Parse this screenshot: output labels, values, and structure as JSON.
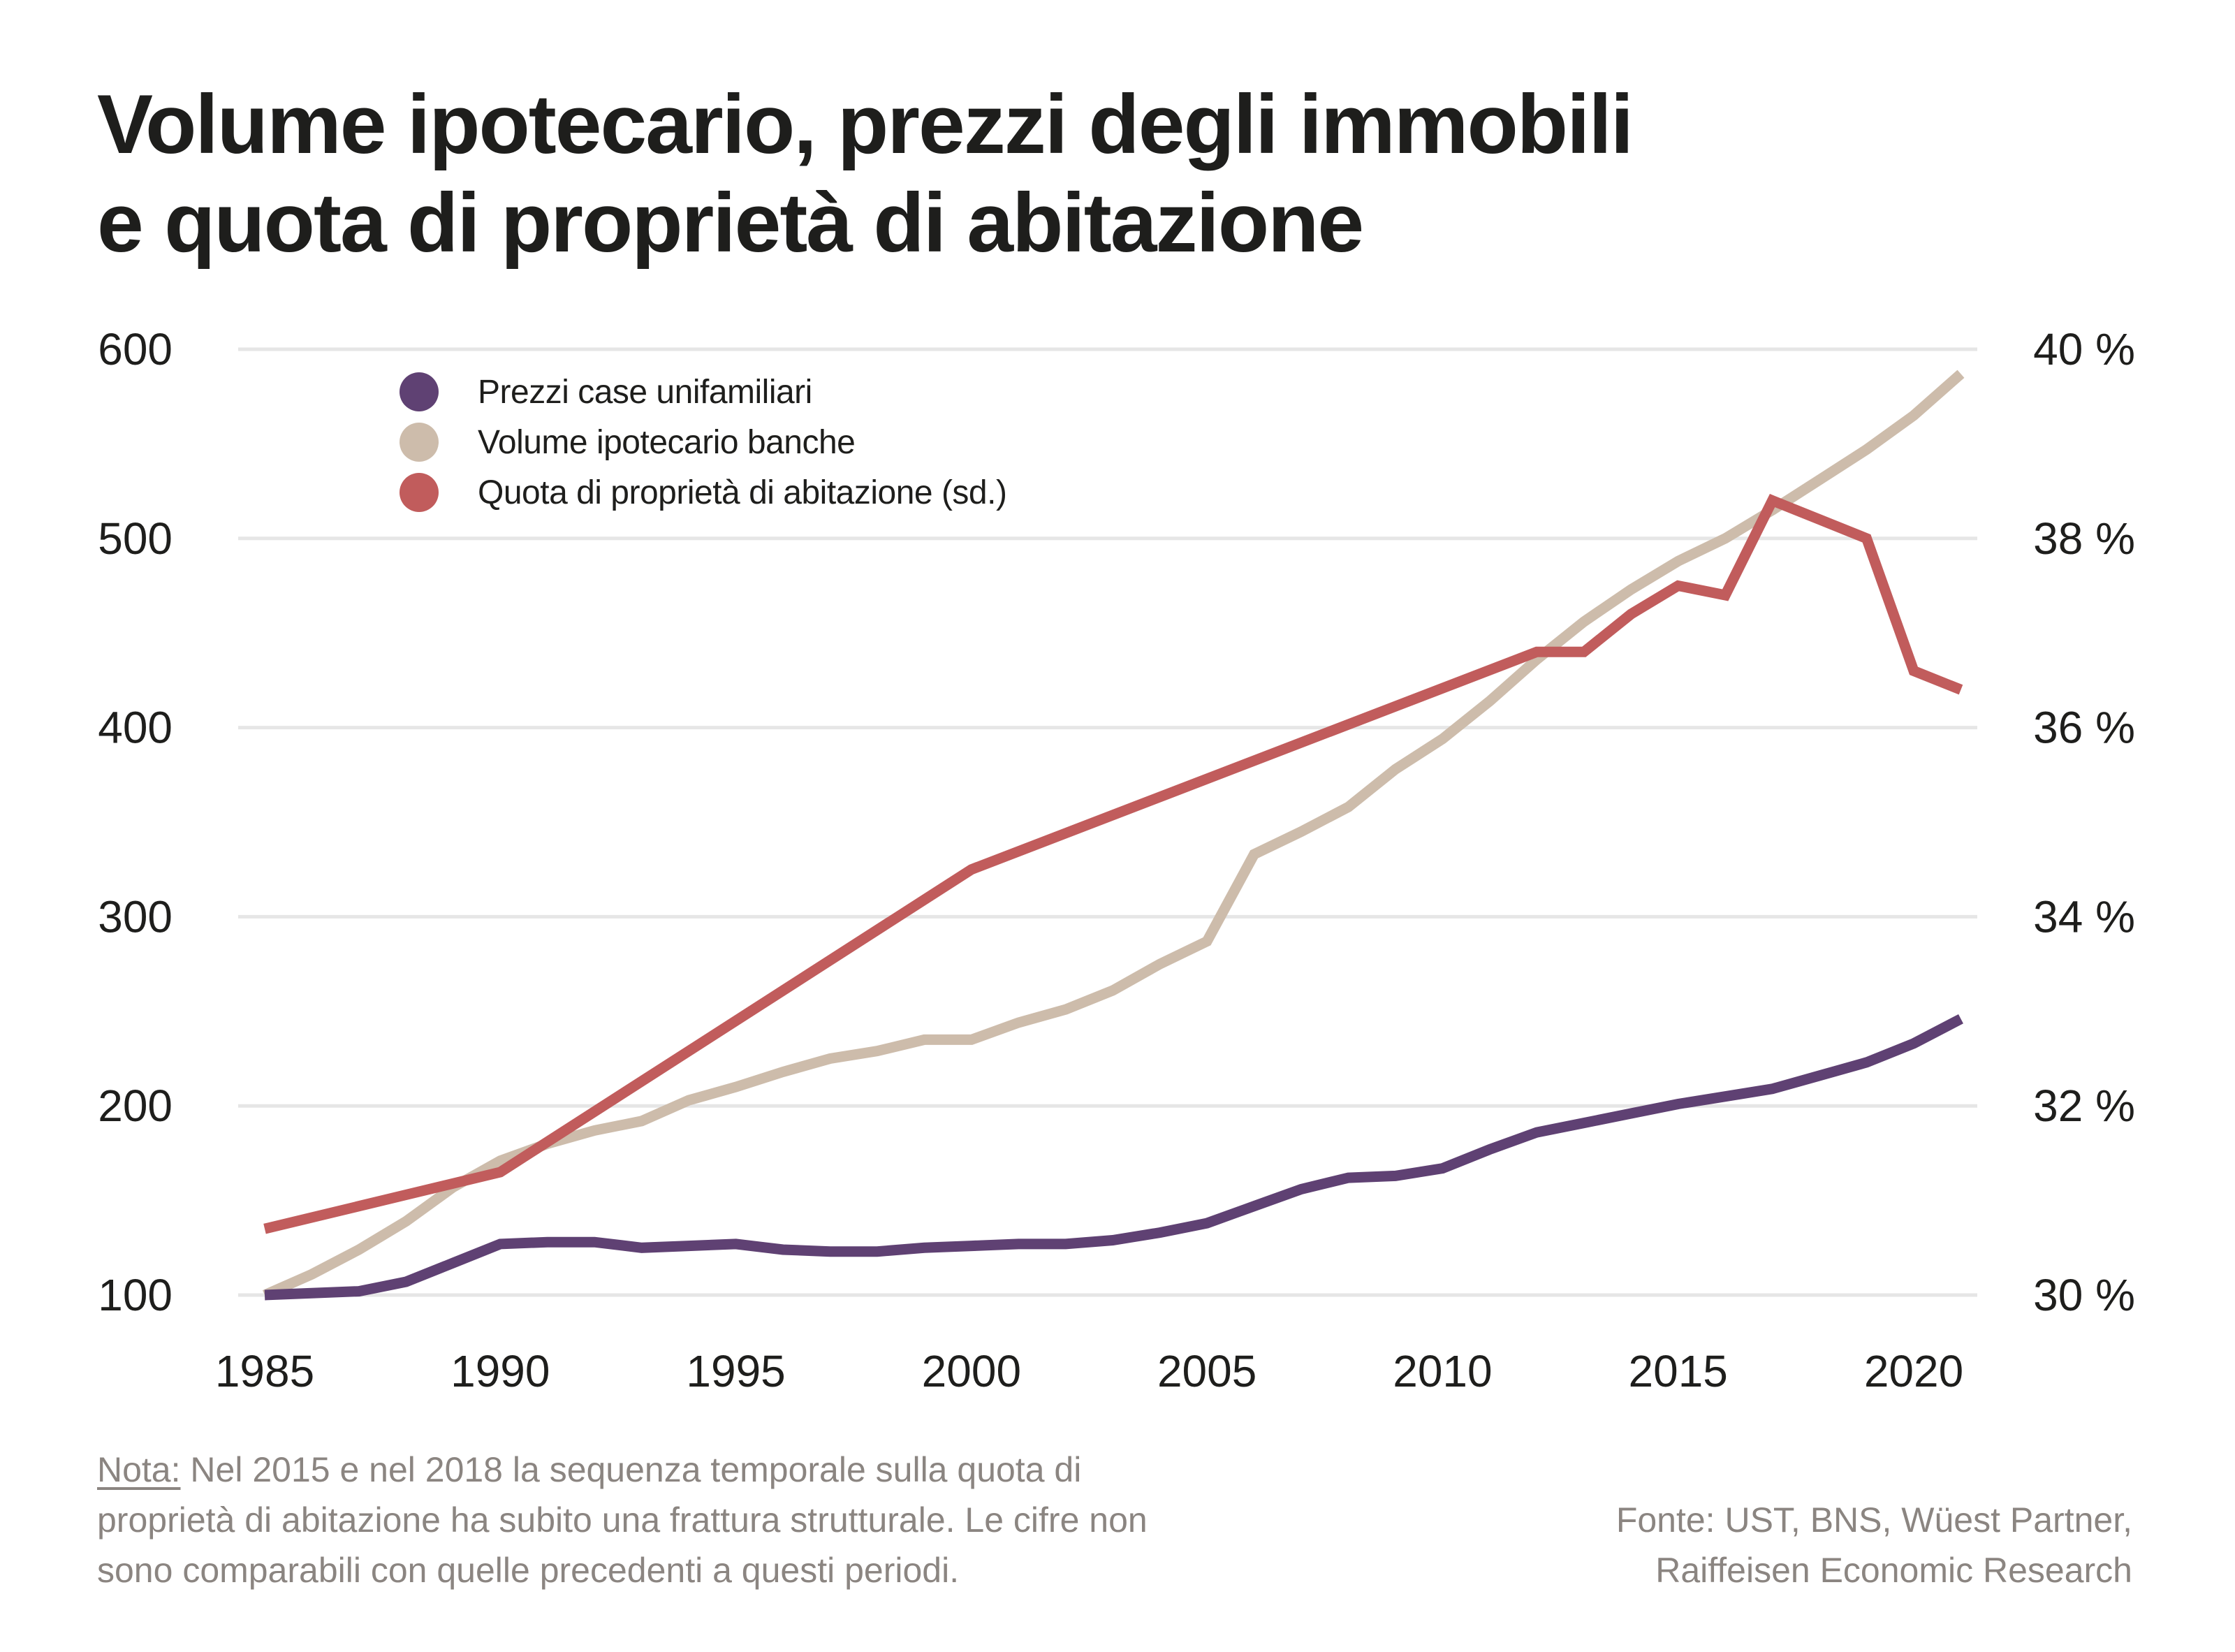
{
  "title": {
    "line1": "Volume ipotecario, prezzi degli immobili",
    "line2": "e quota di proprietà di abitazione"
  },
  "colors": {
    "prezzi": "#5f4173",
    "volume": "#cdbcab",
    "quota": "#c15c5c",
    "grid": "#e6e6e6",
    "text": "#1e1e1c",
    "note_text": "#8b8581"
  },
  "legend": [
    {
      "label": "Prezzi case unifamiliari",
      "color": "#5f4173"
    },
    {
      "label": "Volume ipotecario banche",
      "color": "#cdbcab"
    },
    {
      "label": "Quota di proprietà di abitazione (sd.)",
      "color": "#c15c5c"
    }
  ],
  "note": {
    "label": "Nota:",
    "text": " Nel 2015 e nel 2018 la sequenza temporale sulla quota di proprietà di abitazione ha subito una frattura strutturale. Le cifre non sono comparabili con quelle precedenti a questi periodi."
  },
  "source": {
    "line1": "Fonte: UST, BNS, Wüest Partner,",
    "line2": "Raiffeisen Economic Research"
  },
  "chart_data": {
    "type": "line",
    "title": "Volume ipotecario, prezzi degli immobili e quota di proprietà di abitazione",
    "xlabel": "",
    "ylabel": "",
    "y2label": "",
    "xlim": [
      1985,
      2021
    ],
    "ylim": [
      100,
      600
    ],
    "y2lim": [
      30,
      40
    ],
    "grid": true,
    "legend_position": "top-left",
    "x_ticks": [
      1985,
      1990,
      1995,
      2000,
      2005,
      2010,
      2015,
      2020
    ],
    "x_tick_labels": [
      "1985",
      "1990",
      "1995",
      "2000",
      "2005",
      "2010",
      "2015",
      "2020"
    ],
    "y_ticks": [
      100,
      200,
      300,
      400,
      500,
      600
    ],
    "y_tick_labels": [
      "100",
      "200",
      "300",
      "400",
      "500",
      "600"
    ],
    "y2_ticks": [
      30,
      32,
      34,
      36,
      38,
      40
    ],
    "y2_tick_labels": [
      "30 %",
      "32 %",
      "34 %",
      "36 %",
      "38 %",
      "40 %"
    ],
    "series": [
      {
        "name": "Prezzi case unifamiliari",
        "axis": "left",
        "color": "#5f4173",
        "x": [
          1985,
          1986,
          1987,
          1988,
          1989,
          1990,
          1991,
          1992,
          1993,
          1994,
          1995,
          1996,
          1997,
          1998,
          1999,
          2000,
          2001,
          2002,
          2003,
          2004,
          2005,
          2006,
          2007,
          2008,
          2009,
          2010,
          2011,
          2012,
          2013,
          2014,
          2015,
          2016,
          2017,
          2018,
          2019,
          2020,
          2021
        ],
        "values": [
          100,
          101,
          102,
          107,
          117,
          127,
          128,
          128,
          125,
          126,
          127,
          124,
          123,
          123,
          125,
          126,
          127,
          127,
          129,
          133,
          138,
          147,
          156,
          162,
          163,
          167,
          177,
          186,
          191,
          196,
          201,
          205,
          209,
          216,
          223,
          233,
          246
        ]
      },
      {
        "name": "Volume ipotecario banche",
        "axis": "left",
        "color": "#cdbcab",
        "x": [
          1985,
          1986,
          1987,
          1988,
          1989,
          1990,
          1991,
          1992,
          1993,
          1994,
          1995,
          1996,
          1997,
          1998,
          1999,
          2000,
          2001,
          2002,
          2003,
          2004,
          2005,
          2006,
          2007,
          2008,
          2009,
          2010,
          2011,
          2012,
          2013,
          2014,
          2015,
          2016,
          2017,
          2018,
          2019,
          2020,
          2021
        ],
        "values": [
          100,
          111,
          124,
          139,
          157,
          171,
          180,
          187,
          192,
          203,
          210,
          218,
          225,
          229,
          235,
          235,
          244,
          251,
          261,
          275,
          287,
          333,
          345,
          358,
          378,
          394,
          414,
          436,
          456,
          473,
          488,
          500,
          515,
          531,
          547,
          565,
          587
        ]
      },
      {
        "name": "Quota di proprietà di abitazione (sd.)",
        "axis": "right",
        "color": "#c15c5c",
        "x": [
          1985,
          1990,
          2000,
          2012,
          2013,
          2014,
          2015,
          2016,
          2017,
          2018,
          2019,
          2020,
          2021
        ],
        "values": [
          30.7,
          31.3,
          34.5,
          36.8,
          36.8,
          37.2,
          37.5,
          37.4,
          38.4,
          38.2,
          38.0,
          36.6,
          36.4
        ]
      }
    ]
  }
}
